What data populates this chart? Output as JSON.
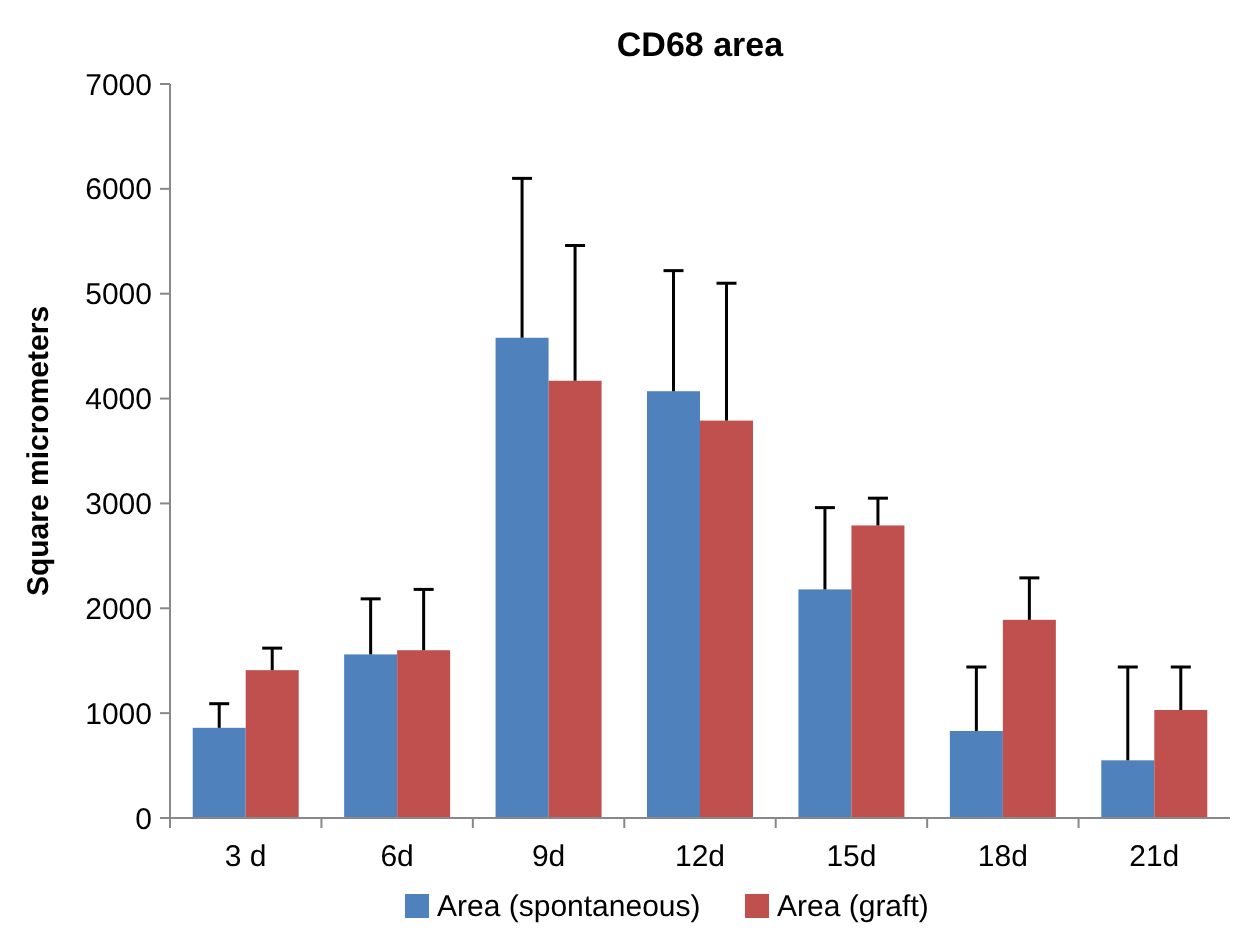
{
  "chart_data": {
    "type": "bar",
    "title": "CD68 area",
    "ylabel": "Square micrometers",
    "categories": [
      "3 d",
      "6d",
      "9d",
      "12d",
      "15d",
      "18d",
      "21d"
    ],
    "series": [
      {
        "name": "Area (spontaneous)",
        "color": "#4f81bd",
        "values": [
          860,
          1560,
          4580,
          4070,
          2180,
          830,
          550
        ],
        "errors": [
          [
            860,
            1090
          ],
          [
            1560,
            2090
          ],
          [
            4580,
            6100
          ],
          [
            4070,
            5220
          ],
          [
            2180,
            2960
          ],
          [
            830,
            1440
          ],
          [
            550,
            1440
          ]
        ]
      },
      {
        "name": "Area (graft)",
        "color": "#c0504d",
        "values": [
          1410,
          1600,
          4170,
          3790,
          2790,
          1890,
          1030
        ],
        "errors": [
          [
            1410,
            1620
          ],
          [
            1600,
            2180
          ],
          [
            4170,
            5460
          ],
          [
            3790,
            5100
          ],
          [
            2790,
            3050
          ],
          [
            1890,
            2290
          ],
          [
            1030,
            1440
          ]
        ]
      }
    ],
    "ylim": [
      0,
      7000
    ],
    "yticks": [
      0,
      1000,
      2000,
      3000,
      4000,
      5000,
      6000,
      7000
    ],
    "legend": "bottom"
  }
}
